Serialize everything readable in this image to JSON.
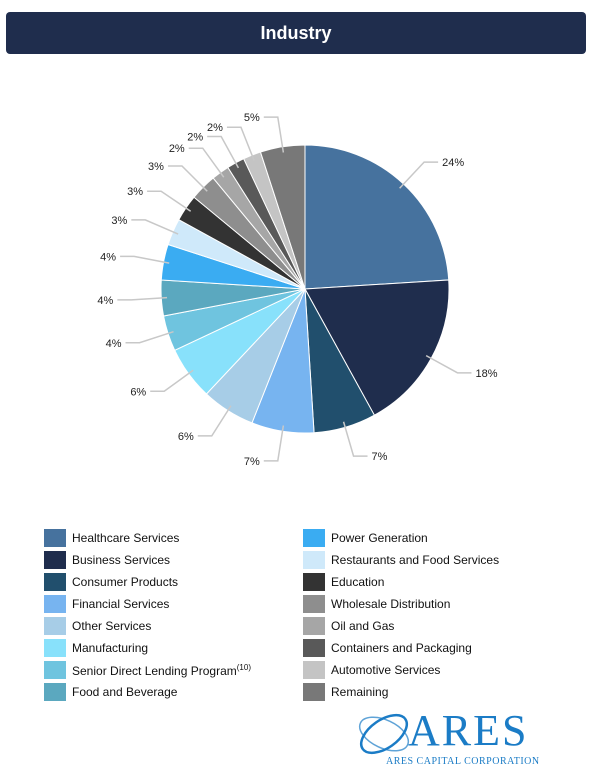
{
  "header": {
    "title": "Industry"
  },
  "chart_data": {
    "type": "pie",
    "title": "Industry",
    "slices": [
      {
        "name": "Healthcare Services",
        "value": 24,
        "label": "24%",
        "color": "#46729e"
      },
      {
        "name": "Business Services",
        "value": 18,
        "label": "18%",
        "color": "#1f2d4d"
      },
      {
        "name": "Consumer Products",
        "value": 7,
        "label": "7%",
        "color": "#214f6d"
      },
      {
        "name": "Financial Services",
        "value": 7,
        "label": "7%",
        "color": "#77b4f0"
      },
      {
        "name": "Other Services",
        "value": 6,
        "label": "6%",
        "color": "#a7cde7"
      },
      {
        "name": "Manufacturing",
        "value": 6,
        "label": "6%",
        "color": "#88e1fb"
      },
      {
        "name": "Senior Direct Lending Program",
        "value": 4,
        "label": "4%",
        "color": "#6fc4df"
      },
      {
        "name": "Food and Beverage",
        "value": 4,
        "label": "4%",
        "color": "#5ba8bf"
      },
      {
        "name": "Power Generation",
        "value": 4,
        "label": "4%",
        "color": "#3aacf2"
      },
      {
        "name": "Restaurants and Food Services",
        "value": 3,
        "label": "3%",
        "color": "#cfe9fa"
      },
      {
        "name": "Education",
        "value": 3,
        "label": "3%",
        "color": "#333333"
      },
      {
        "name": "Wholesale Distribution",
        "value": 3,
        "label": "3%",
        "color": "#8e8e8e"
      },
      {
        "name": "Oil and Gas",
        "value": 2,
        "label": "2%",
        "color": "#a6a6a6"
      },
      {
        "name": "Containers and Packaging",
        "value": 2,
        "label": "2%",
        "color": "#595959"
      },
      {
        "name": "Automotive Services",
        "value": 2,
        "label": "2%",
        "color": "#c4c4c4"
      },
      {
        "name": "Remaining",
        "value": 5,
        "label": "5%",
        "color": "#787878"
      }
    ]
  },
  "legend": {
    "left": [
      {
        "label": "Healthcare Services",
        "color": "#46729e"
      },
      {
        "label": "Business Services",
        "color": "#1f2d4d"
      },
      {
        "label": "Consumer Products",
        "color": "#214f6d"
      },
      {
        "label": "Financial Services",
        "color": "#77b4f0"
      },
      {
        "label": "Other Services",
        "color": "#a7cde7"
      },
      {
        "label": "Manufacturing",
        "color": "#88e1fb"
      },
      {
        "label": "Senior Direct Lending Program",
        "sup": "(10)",
        "color": "#6fc4df"
      },
      {
        "label": "Food and Beverage",
        "color": "#5ba8bf"
      }
    ],
    "right": [
      {
        "label": "Power Generation",
        "color": "#3aacf2"
      },
      {
        "label": "Restaurants and Food Services",
        "color": "#cfe9fa"
      },
      {
        "label": "Education",
        "color": "#333333"
      },
      {
        "label": "Wholesale Distribution",
        "color": "#8e8e8e"
      },
      {
        "label": "Oil and Gas",
        "color": "#a6a6a6"
      },
      {
        "label": "Containers and Packaging",
        "color": "#595959"
      },
      {
        "label": "Automotive Services",
        "color": "#c4c4c4"
      },
      {
        "label": "Remaining",
        "color": "#787878"
      }
    ]
  },
  "logo": {
    "name": "ARES",
    "subtitle": "ARES CAPITAL CORPORATION",
    "color": "#1b7cc6"
  }
}
